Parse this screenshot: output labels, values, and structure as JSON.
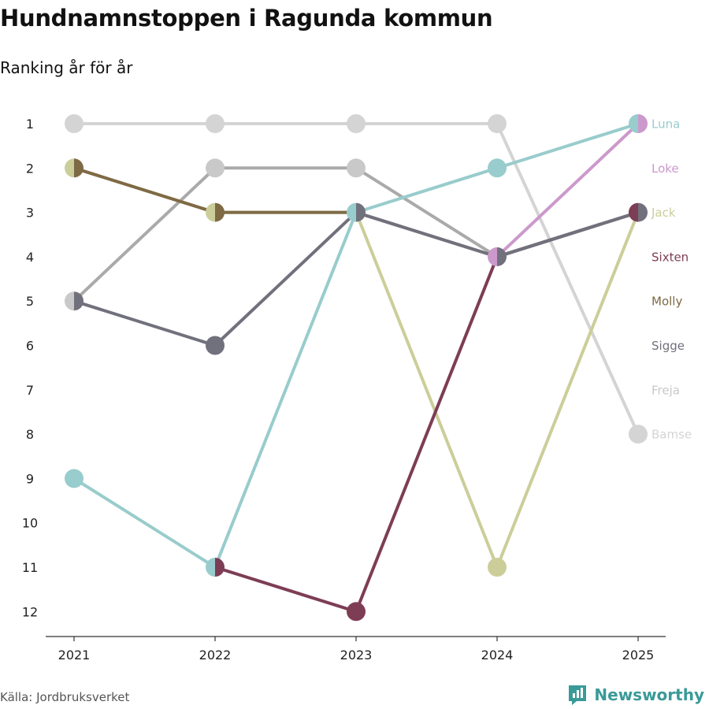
{
  "header": {
    "title": "Hundnamnstoppen i Ragunda kommun",
    "subtitle": "Ranking år för år"
  },
  "footer": {
    "source": "Källa: Jordbruksverket",
    "brand": "Newsworthy"
  },
  "chart_data": {
    "type": "line",
    "title": "Hundnamnstoppen i Ragunda kommun",
    "subtitle": "Ranking år för år",
    "x": [
      "2021",
      "2022",
      "2023",
      "2024",
      "2025"
    ],
    "y_ticks": [
      1,
      2,
      3,
      4,
      5,
      6,
      7,
      8,
      9,
      10,
      11,
      12
    ],
    "ylim": [
      1,
      12
    ],
    "y_reversed": true,
    "grid": false,
    "legend": "right (labels at end of series)",
    "series": [
      {
        "name": "Bamse",
        "color": "#d4d4d4",
        "values": [
          1,
          1,
          1,
          1,
          8
        ]
      },
      {
        "name": "Freja",
        "color": "#c9c9c9",
        "values": [
          5,
          2,
          2,
          4,
          null
        ]
      },
      {
        "name": "Jack",
        "color": "#ccce9a",
        "values": [
          2,
          3,
          3,
          11,
          3
        ]
      },
      {
        "name": "Molly",
        "color": "#7e6a45",
        "values": [
          2,
          3,
          3,
          4,
          3
        ]
      },
      {
        "name": "Luna",
        "color": "#99cccc",
        "values": [
          9,
          11,
          3,
          2,
          1
        ]
      },
      {
        "name": "Sixten",
        "color": "#7d3d55",
        "values": [
          null,
          11,
          12,
          4,
          3
        ]
      },
      {
        "name": "Loke",
        "color": "#cc99cc",
        "values": [
          null,
          null,
          null,
          4,
          1
        ]
      },
      {
        "name": "Sigge",
        "color": "#71717d",
        "values": [
          5,
          6,
          3,
          4,
          3
        ]
      }
    ],
    "line_colors": {
      "Freja": "#aaaaaa"
    },
    "end_labels": [
      {
        "name": "Luna",
        "rank": 1,
        "color": "#99cccc"
      },
      {
        "name": "Loke",
        "rank": 2,
        "color": "#cc99cc"
      },
      {
        "name": "Jack",
        "rank": 3,
        "color": "#ccce9a"
      },
      {
        "name": "Sixten",
        "rank": 4,
        "color": "#7d3d55"
      },
      {
        "name": "Molly",
        "rank": 5,
        "color": "#7e6a45"
      },
      {
        "name": "Sigge",
        "rank": 6,
        "color": "#71717d"
      },
      {
        "name": "Freja",
        "rank": 7,
        "color": "#c9c9c9"
      },
      {
        "name": "Bamse",
        "rank": 8,
        "color": "#d4d4d4"
      }
    ]
  }
}
